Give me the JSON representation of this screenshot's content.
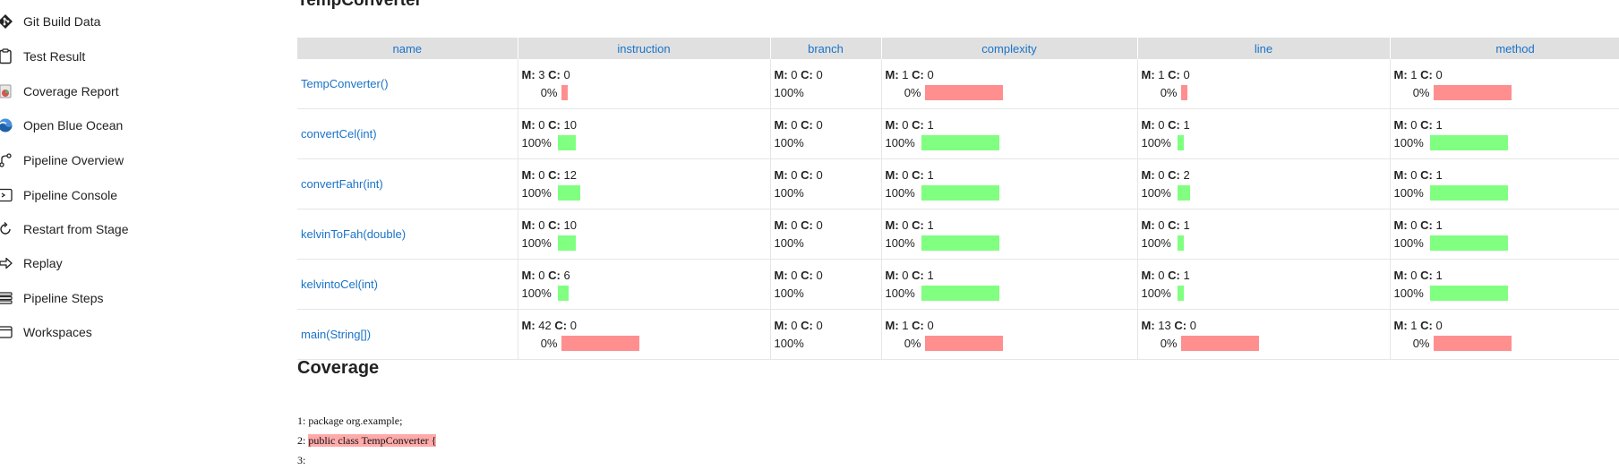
{
  "sidebar": {
    "items": [
      {
        "label": "Git Build Data",
        "icon": "git-icon"
      },
      {
        "label": "Test Result",
        "icon": "clipboard-icon"
      },
      {
        "label": "Coverage Report",
        "icon": "coverage-report-icon"
      },
      {
        "label": "Open Blue Ocean",
        "icon": "blue-ocean-icon"
      },
      {
        "label": "Pipeline Overview",
        "icon": "pipeline-graph-icon"
      },
      {
        "label": "Pipeline Console",
        "icon": "console-icon"
      },
      {
        "label": "Restart from Stage",
        "icon": "restart-icon"
      },
      {
        "label": "Replay",
        "icon": "replay-icon"
      },
      {
        "label": "Pipeline Steps",
        "icon": "list-icon"
      },
      {
        "label": "Workspaces",
        "icon": "folder-icon"
      }
    ]
  },
  "main": {
    "title": "TempConverter",
    "coverage_title": "Coverage"
  },
  "table": {
    "headers": [
      "name",
      "instruction",
      "branch",
      "complexity",
      "line",
      "method"
    ],
    "rows": [
      {
        "name": "TempConverter()",
        "cells": [
          {
            "m": "3",
            "c": "0",
            "pct": "0%",
            "ratio": 0,
            "bar": "small-red"
          },
          {
            "m": "0",
            "c": "0",
            "pct": "100%",
            "ratio": 1,
            "bar": "none"
          },
          {
            "m": "1",
            "c": "0",
            "pct": "0%",
            "ratio": 0,
            "bar": "red"
          },
          {
            "m": "1",
            "c": "0",
            "pct": "0%",
            "ratio": 0,
            "bar": "small-red"
          },
          {
            "m": "1",
            "c": "0",
            "pct": "0%",
            "ratio": 0,
            "bar": "red"
          }
        ]
      },
      {
        "name": "convertCel(int)",
        "cells": [
          {
            "m": "0",
            "c": "10",
            "pct": "100%",
            "ratio": 1,
            "bar": "green-10"
          },
          {
            "m": "0",
            "c": "0",
            "pct": "100%",
            "ratio": 1,
            "bar": "none"
          },
          {
            "m": "0",
            "c": "1",
            "pct": "100%",
            "ratio": 1,
            "bar": "green"
          },
          {
            "m": "0",
            "c": "1",
            "pct": "100%",
            "ratio": 1,
            "bar": "green-small"
          },
          {
            "m": "0",
            "c": "1",
            "pct": "100%",
            "ratio": 1,
            "bar": "green"
          }
        ]
      },
      {
        "name": "convertFahr(int)",
        "cells": [
          {
            "m": "0",
            "c": "12",
            "pct": "100%",
            "ratio": 1,
            "bar": "green-12"
          },
          {
            "m": "0",
            "c": "0",
            "pct": "100%",
            "ratio": 1,
            "bar": "none"
          },
          {
            "m": "0",
            "c": "1",
            "pct": "100%",
            "ratio": 1,
            "bar": "green"
          },
          {
            "m": "0",
            "c": "2",
            "pct": "100%",
            "ratio": 1,
            "bar": "green-2"
          },
          {
            "m": "0",
            "c": "1",
            "pct": "100%",
            "ratio": 1,
            "bar": "green"
          }
        ]
      },
      {
        "name": "kelvinToFah(double)",
        "cells": [
          {
            "m": "0",
            "c": "10",
            "pct": "100%",
            "ratio": 1,
            "bar": "green-10"
          },
          {
            "m": "0",
            "c": "0",
            "pct": "100%",
            "ratio": 1,
            "bar": "none"
          },
          {
            "m": "0",
            "c": "1",
            "pct": "100%",
            "ratio": 1,
            "bar": "green"
          },
          {
            "m": "0",
            "c": "1",
            "pct": "100%",
            "ratio": 1,
            "bar": "green-small"
          },
          {
            "m": "0",
            "c": "1",
            "pct": "100%",
            "ratio": 1,
            "bar": "green"
          }
        ]
      },
      {
        "name": "kelvintoCel(int)",
        "cells": [
          {
            "m": "0",
            "c": "6",
            "pct": "100%",
            "ratio": 1,
            "bar": "green-6"
          },
          {
            "m": "0",
            "c": "0",
            "pct": "100%",
            "ratio": 1,
            "bar": "none"
          },
          {
            "m": "0",
            "c": "1",
            "pct": "100%",
            "ratio": 1,
            "bar": "green"
          },
          {
            "m": "0",
            "c": "1",
            "pct": "100%",
            "ratio": 1,
            "bar": "green-small"
          },
          {
            "m": "0",
            "c": "1",
            "pct": "100%",
            "ratio": 1,
            "bar": "green"
          }
        ]
      },
      {
        "name": "main(String[])",
        "cells": [
          {
            "m": "42",
            "c": "0",
            "pct": "0%",
            "ratio": 0,
            "bar": "red"
          },
          {
            "m": "0",
            "c": "0",
            "pct": "100%",
            "ratio": 1,
            "bar": "none"
          },
          {
            "m": "1",
            "c": "0",
            "pct": "0%",
            "ratio": 0,
            "bar": "red"
          },
          {
            "m": "13",
            "c": "0",
            "pct": "0%",
            "ratio": 0,
            "bar": "red"
          },
          {
            "m": "1",
            "c": "0",
            "pct": "0%",
            "ratio": 0,
            "bar": "red"
          }
        ]
      }
    ]
  },
  "code": {
    "lines": [
      {
        "num": "1:",
        "text": "package org.example;",
        "missed": false
      },
      {
        "num": "2:",
        "text": "public class TempConverter {",
        "missed": true
      },
      {
        "num": "3:",
        "text": "",
        "missed": false
      }
    ]
  },
  "colors": {
    "covered": "#80ff80",
    "missed": "#ff8f8f",
    "link": "#1a73c8",
    "header_bg": "#e0e0e0",
    "missed_line": "#ffaaaa"
  }
}
